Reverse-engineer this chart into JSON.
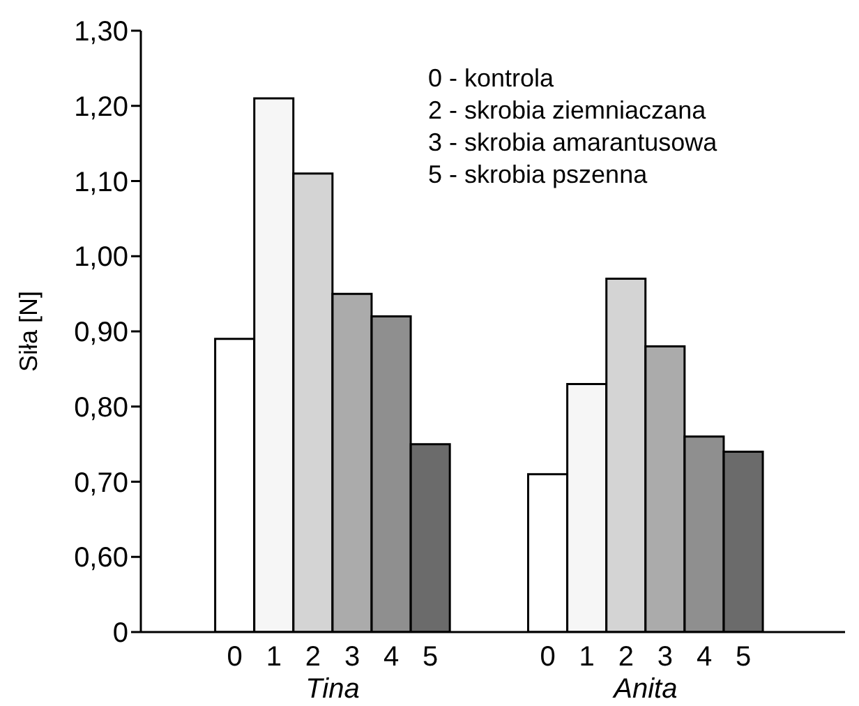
{
  "chart_data": {
    "type": "bar",
    "ylabel": "Siła [N]",
    "categories": [
      "0",
      "1",
      "2",
      "3",
      "4",
      "5",
      "0",
      "1",
      "2",
      "3",
      "4",
      "5"
    ],
    "values": [
      0.89,
      1.21,
      1.11,
      0.95,
      0.92,
      0.75,
      0.71,
      0.83,
      0.97,
      0.88,
      0.76,
      0.74
    ],
    "colors": [
      "#ffffff",
      "#f6f6f6",
      "#d4d4d4",
      "#ababab",
      "#8f8f8f",
      "#6b6b6b",
      "#ffffff",
      "#f6f6f6",
      "#d4d4d4",
      "#ababab",
      "#8f8f8f",
      "#6b6b6b"
    ],
    "ylim": [
      0.5,
      1.3
    ],
    "yticks": [
      {
        "value": 0.5,
        "label": "0"
      },
      {
        "value": 0.6,
        "label": "0,60"
      },
      {
        "value": 0.7,
        "label": "0,70"
      },
      {
        "value": 0.8,
        "label": "0,80"
      },
      {
        "value": 0.9,
        "label": "0,90"
      },
      {
        "value": 1.0,
        "label": "1,00"
      },
      {
        "value": 1.1,
        "label": "1,10"
      },
      {
        "value": 1.2,
        "label": "1,20"
      },
      {
        "value": 1.3,
        "label": "1,30"
      }
    ],
    "annotations": [
      "Tina",
      "Anita",
      "0 - kontrola",
      "2 - skrobia ziemniaczana",
      "3 - skrobia amarantusowa",
      "5 - skrobia pszenna"
    ],
    "grid": false,
    "legend": false
  }
}
